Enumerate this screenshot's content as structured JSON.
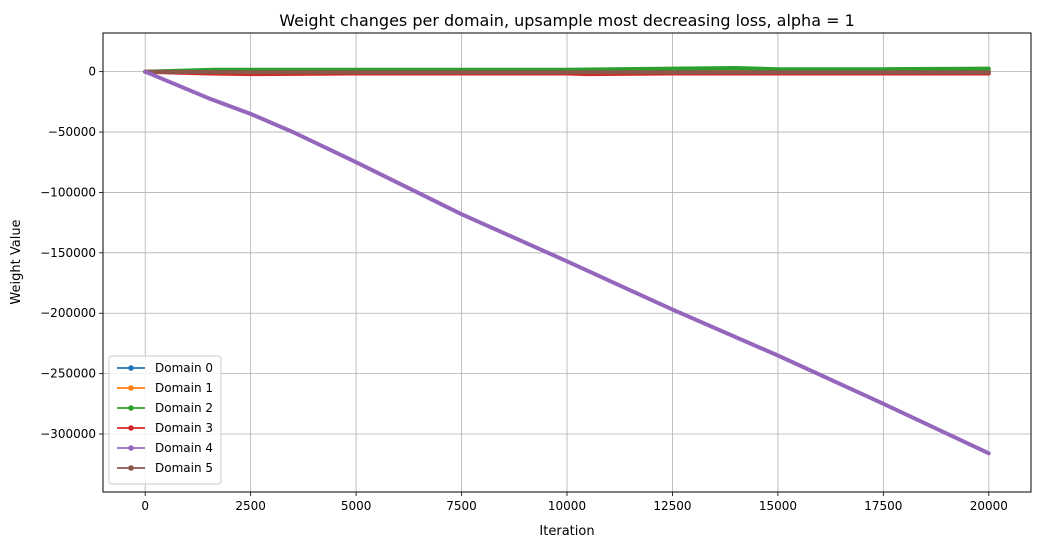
{
  "chart_data": {
    "type": "line",
    "title": "Weight changes per domain, upsample most decreasing loss, alpha = 1",
    "xlabel": "Iteration",
    "ylabel": "Weight Value",
    "xlim": [
      -1000,
      21000
    ],
    "ylim": [
      -348000,
      32000
    ],
    "x_ticks": [
      0,
      2500,
      5000,
      7500,
      10000,
      12500,
      15000,
      17500,
      20000
    ],
    "x_tick_labels": [
      "0",
      "2500",
      "5000",
      "7500",
      "10000",
      "12500",
      "15000",
      "17500",
      "20000"
    ],
    "y_ticks": [
      0,
      -50000,
      -100000,
      -150000,
      -200000,
      -250000,
      -300000
    ],
    "y_tick_labels": [
      "0",
      "−50000",
      "−100000",
      "−150000",
      "−200000",
      "−250000",
      "−300000"
    ],
    "grid": true,
    "legend_position": "lower-left",
    "series": [
      {
        "name": "Domain 0",
        "color": "#1f77b4",
        "x": [
          0,
          2500,
          5000,
          7500,
          10000,
          12500,
          15000,
          17500,
          20000
        ],
        "y": [
          0,
          0,
          0,
          0,
          0,
          0,
          0,
          0,
          0
        ]
      },
      {
        "name": "Domain 1",
        "color": "#ff7f0e",
        "x": [
          0,
          2500,
          5000,
          7500,
          10000,
          12500,
          15000,
          17500,
          20000
        ],
        "y": [
          0,
          500,
          500,
          500,
          500,
          500,
          500,
          500,
          500
        ]
      },
      {
        "name": "Domain 2",
        "color": "#2ca02c",
        "x": [
          0,
          1600,
          2500,
          5000,
          7500,
          10000,
          12500,
          14000,
          15000,
          17500,
          20000
        ],
        "y": [
          0,
          1500,
          1500,
          1500,
          1500,
          1500,
          2500,
          3000,
          2000,
          2000,
          2500
        ]
      },
      {
        "name": "Domain 3",
        "color": "#d62728",
        "x": [
          0,
          1500,
          2500,
          5000,
          7500,
          10000,
          10500,
          12500,
          15000,
          17500,
          20000
        ],
        "y": [
          0,
          -1500,
          -2000,
          -1500,
          -1500,
          -1500,
          -2000,
          -1500,
          -1500,
          -1500,
          -1500
        ]
      },
      {
        "name": "Domain 5",
        "color": "#8c564b",
        "x": [
          0,
          2500,
          5000,
          7500,
          10000,
          12500,
          15000,
          17500,
          20000
        ],
        "y": [
          0,
          -500,
          -500,
          -500,
          -500,
          -500,
          -500,
          -500,
          -500
        ]
      },
      {
        "name": "Domain 4",
        "color": "#9467bd",
        "x": [
          0,
          1500,
          2500,
          3500,
          5000,
          7500,
          10000,
          12500,
          15000,
          17500,
          20000
        ],
        "y": [
          0,
          -22000,
          -35000,
          -50000,
          -75000,
          -118000,
          -157000,
          -197000,
          -235000,
          -275000,
          -316000
        ]
      }
    ]
  }
}
